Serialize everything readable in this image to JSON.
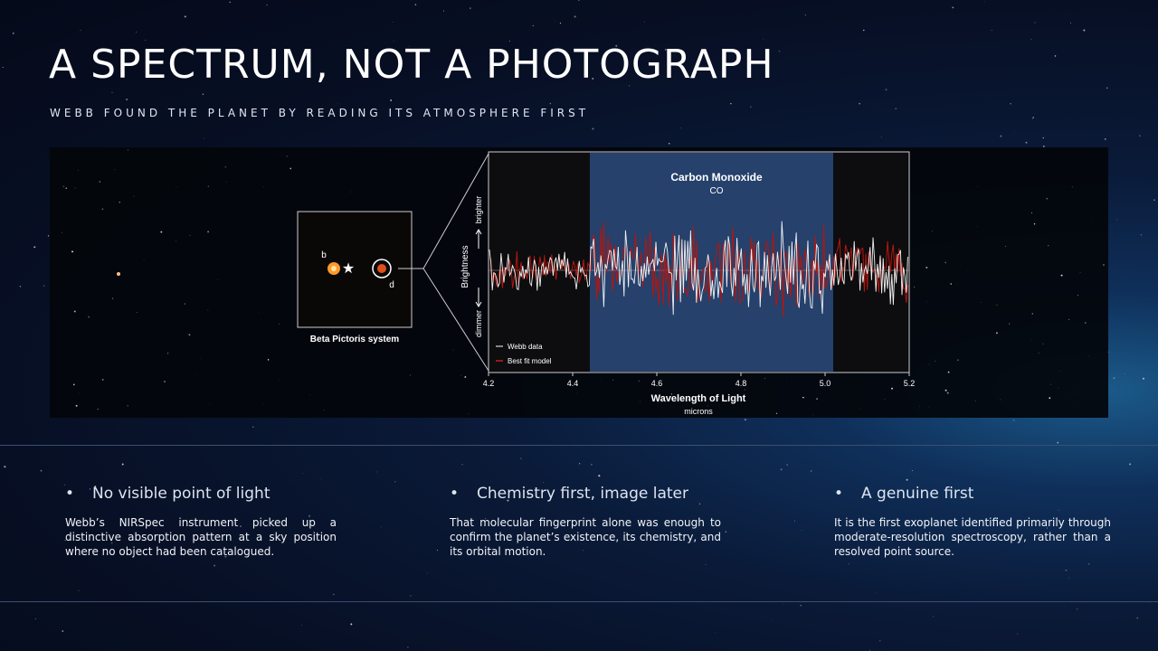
{
  "header": {
    "title": "A SPECTRUM, NOT A PHOTOGRAPH",
    "subtitle": "WEBB FOUND THE PLANET BY READING ITS ATMOSPHERE FIRST"
  },
  "figure": {
    "inset": {
      "caption": "Beta Pictoris system",
      "labels": [
        "b",
        "d"
      ]
    },
    "band_label": "Carbon Monoxide",
    "band_formula": "CO",
    "y_label": "Brightness",
    "y_high": "brighter",
    "y_low": "dimmer",
    "legend": [
      "Webb data",
      "Best fit model"
    ],
    "x_ticks": [
      "4.2",
      "4.4",
      "4.6",
      "4.8",
      "5.0",
      "5.2"
    ],
    "x_label": "Wavelength of Light",
    "x_unit": "microns"
  },
  "points": [
    {
      "heading": "No visible point of light",
      "body": "Webb’s NIRSpec instrument picked up a distinctive absorption pattern at a sky position where no object had been catalogued."
    },
    {
      "heading": "Chemistry first, image later",
      "body": "That molecular fingerprint alone was enough to confirm the planet’s existence, its chemistry, and its orbital motion."
    },
    {
      "heading": "A genuine first",
      "body": "It is the first exoplanet identified primarily through moderate-resolution spectroscopy, rather than a resolved point source."
    }
  ]
}
